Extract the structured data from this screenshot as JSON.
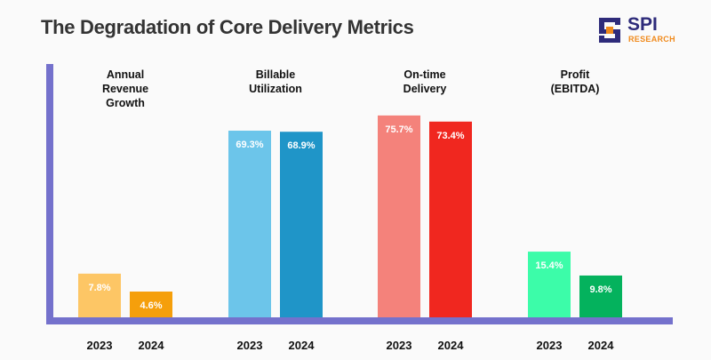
{
  "chart_data": {
    "type": "bar",
    "title": "The Degradation of Core Delivery Metrics",
    "categories": [
      "2023",
      "2024"
    ],
    "unit": "%",
    "groups": [
      {
        "label": [
          "Annual",
          "Revenue",
          "Growth"
        ],
        "values": [
          7.8,
          4.6
        ],
        "value_labels": [
          "7.8%",
          "4.6%"
        ],
        "colors": [
          "#fdc665",
          "#f59f0b"
        ]
      },
      {
        "label": [
          "Billable",
          "Utilization"
        ],
        "values": [
          69.3,
          68.9
        ],
        "value_labels": [
          "69.3%",
          "68.9%"
        ],
        "colors": [
          "#6cc5ea",
          "#1f95c8"
        ]
      },
      {
        "label": [
          "On-time",
          "Delivery"
        ],
        "values": [
          75.7,
          73.4
        ],
        "value_labels": [
          "75.7%",
          "73.4%"
        ],
        "colors": [
          "#f4827b",
          "#f0271f"
        ]
      },
      {
        "label": [
          "Profit",
          "(EBITDA)"
        ],
        "values": [
          15.4,
          9.8
        ],
        "value_labels": [
          "15.4%",
          "9.8%"
        ],
        "colors": [
          "#3cfca9",
          "#04b25d"
        ]
      }
    ],
    "axis_color": "#7471cc",
    "grid": false,
    "legend": "none"
  },
  "logo": {
    "name": "SPI",
    "sub": "RESEARCH"
  }
}
